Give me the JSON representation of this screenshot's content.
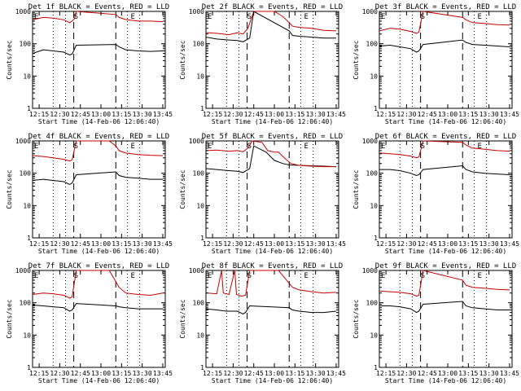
{
  "chart_data": [
    {
      "type": "line",
      "title": "Det 1f BLACK = Events, RED = LLD",
      "ylabel": "Counts/sec",
      "xlabel": "Start Time (14-Feb-06 12:06:40)",
      "yscale": "log",
      "ylim": [
        1,
        1000
      ],
      "x_ticks": [
        "12:15",
        "12:30",
        "12:45",
        "13:00",
        "13:15",
        "13:30",
        "13:45"
      ],
      "y_ticks": [
        "1",
        "10",
        "100",
        "1000"
      ],
      "markers": [
        "E",
        "S",
        "E"
      ],
      "series": [
        {
          "name": "BLACK",
          "color": "#000000",
          "x": [
            12.17,
            12.3,
            12.42,
            12.55,
            12.62,
            12.65,
            12.7,
            13.18,
            13.22,
            13.3,
            13.45,
            13.6,
            13.75
          ],
          "y": [
            50,
            65,
            60,
            55,
            45,
            48,
            90,
            95,
            80,
            65,
            60,
            58,
            60
          ]
        },
        {
          "name": "RED",
          "color": "#cc0000",
          "x": [
            12.17,
            12.3,
            12.42,
            12.55,
            12.62,
            12.65,
            12.68,
            12.7,
            13.18,
            13.22,
            13.3,
            13.45,
            13.6,
            13.75
          ],
          "y": [
            550,
            650,
            620,
            550,
            450,
            500,
            600,
            1000,
            800,
            650,
            560,
            500,
            500,
            480
          ]
        }
      ]
    },
    {
      "type": "line",
      "title": "Det 2f BLACK = Events, RED = LLD",
      "ylabel": "Counts/sec",
      "xlabel": "Start Time (14-Feb-06 12:06:40)",
      "yscale": "log",
      "ylim": [
        1,
        1000
      ],
      "x_ticks": [
        "12:15",
        "12:30",
        "12:45",
        "13:00",
        "13:15",
        "13:30",
        "13:45"
      ],
      "y_ticks": [
        "1",
        "10",
        "100",
        "1000"
      ],
      "markers": [
        "E",
        "S",
        "E"
      ],
      "series": [
        {
          "name": "BLACK",
          "color": "#000000",
          "x": [
            12.17,
            12.3,
            12.45,
            12.55,
            12.62,
            12.7,
            12.75,
            13.18,
            13.22,
            13.3,
            13.45,
            13.6,
            13.75
          ],
          "y": [
            160,
            140,
            130,
            125,
            115,
            150,
            1000,
            250,
            180,
            170,
            160,
            150,
            150
          ]
        },
        {
          "name": "RED",
          "color": "#cc0000",
          "x": [
            12.17,
            12.3,
            12.45,
            12.55,
            12.62,
            12.68,
            12.75,
            13.0,
            13.1,
            13.18,
            13.22,
            13.3,
            13.45,
            13.6,
            13.75
          ],
          "y": [
            220,
            210,
            190,
            220,
            200,
            300,
            1000,
            1000,
            700,
            450,
            350,
            320,
            300,
            260,
            250
          ]
        }
      ]
    },
    {
      "type": "line",
      "title": "Det 3f BLACK = Events, RED = LLD",
      "ylabel": "Counts/sec",
      "xlabel": "Start Time (14-Feb-06 12:06:40)",
      "yscale": "log",
      "ylim": [
        1,
        1000
      ],
      "x_ticks": [
        "12:15",
        "12:30",
        "12:45",
        "13:00",
        "13:15",
        "13:30",
        "13:45"
      ],
      "y_ticks": [
        "1",
        "10",
        "100",
        "1000"
      ],
      "markers": [
        "E",
        "S",
        "E"
      ],
      "series": [
        {
          "name": "BLACK",
          "color": "#000000",
          "x": [
            12.17,
            12.3,
            12.42,
            12.55,
            12.62,
            12.65,
            12.7,
            13.18,
            13.22,
            13.3,
            13.45,
            13.6,
            13.75
          ],
          "y": [
            85,
            90,
            80,
            70,
            55,
            60,
            95,
            130,
            110,
            95,
            90,
            85,
            80
          ]
        },
        {
          "name": "RED",
          "color": "#cc0000",
          "x": [
            12.17,
            12.3,
            12.42,
            12.55,
            12.62,
            12.65,
            12.7,
            13.18,
            13.22,
            13.3,
            13.45,
            13.6,
            13.75
          ],
          "y": [
            250,
            300,
            280,
            240,
            210,
            230,
            1000,
            650,
            550,
            450,
            420,
            390,
            380
          ]
        }
      ]
    },
    {
      "type": "line",
      "title": "Det 4f BLACK = Events, RED = LLD",
      "ylabel": "Counts/sec",
      "xlabel": "Start Time (14-Feb-06 12:06:40)",
      "yscale": "log",
      "ylim": [
        1,
        1000
      ],
      "x_ticks": [
        "12:15",
        "12:30",
        "12:45",
        "13:00",
        "13:15",
        "13:30",
        "13:45"
      ],
      "y_ticks": [
        "1",
        "10",
        "100",
        "1000"
      ],
      "markers": [
        "E",
        "S",
        "E"
      ],
      "series": [
        {
          "name": "BLACK",
          "color": "#000000",
          "x": [
            12.17,
            12.3,
            12.42,
            12.55,
            12.62,
            12.65,
            12.7,
            13.18,
            13.22,
            13.3,
            13.45,
            13.6,
            13.75
          ],
          "y": [
            60,
            65,
            60,
            55,
            45,
            50,
            90,
            110,
            85,
            75,
            70,
            65,
            65
          ]
        },
        {
          "name": "RED",
          "color": "#cc0000",
          "x": [
            12.17,
            12.3,
            12.42,
            12.55,
            12.62,
            12.65,
            12.7,
            13.1,
            13.18,
            13.22,
            13.3,
            13.45,
            13.6,
            13.75
          ],
          "y": [
            350,
            330,
            300,
            270,
            240,
            260,
            1000,
            1000,
            700,
            500,
            420,
            380,
            360,
            350
          ]
        }
      ]
    },
    {
      "type": "line",
      "title": "Det 5f BLACK = Events, RED = LLD",
      "ylabel": "Counts/sec",
      "xlabel": "Start Time (14-Feb-06 12:06:40)",
      "yscale": "log",
      "ylim": [
        1,
        1000
      ],
      "x_ticks": [
        "12:15",
        "12:30",
        "12:45",
        "13:00",
        "13:15",
        "13:30",
        "13:45"
      ],
      "y_ticks": [
        "1",
        "10",
        "100",
        "1000"
      ],
      "markers": [
        "E",
        "S",
        "E"
      ],
      "series": [
        {
          "name": "BLACK",
          "color": "#000000",
          "x": [
            12.17,
            12.3,
            12.45,
            12.55,
            12.62,
            12.7,
            12.75,
            12.9,
            13.0,
            13.1,
            13.18,
            13.3,
            13.45,
            13.6,
            13.75
          ],
          "y": [
            140,
            130,
            120,
            115,
            105,
            140,
            700,
            450,
            250,
            200,
            180,
            175,
            170,
            165,
            160
          ]
        },
        {
          "name": "RED",
          "color": "#cc0000",
          "x": [
            12.17,
            12.3,
            12.45,
            12.55,
            12.62,
            12.68,
            12.73,
            12.85,
            12.92,
            13.0,
            13.05,
            13.12,
            13.2,
            13.3,
            13.45,
            13.6,
            13.75
          ],
          "y": [
            500,
            520,
            480,
            500,
            460,
            600,
            1000,
            900,
            500,
            450,
            450,
            300,
            200,
            175,
            165,
            160,
            160
          ]
        }
      ]
    },
    {
      "type": "line",
      "title": "Det 6f BLACK = Events, RED = LLD",
      "ylabel": "Counts/sec",
      "xlabel": "Start Time (14-Feb-06 12:06:40)",
      "yscale": "log",
      "ylim": [
        1,
        1000
      ],
      "x_ticks": [
        "12:15",
        "12:30",
        "12:45",
        "13:00",
        "13:15",
        "13:30",
        "13:45"
      ],
      "y_ticks": [
        "1",
        "10",
        "100",
        "1000"
      ],
      "markers": [
        "E",
        "S",
        "E"
      ],
      "series": [
        {
          "name": "BLACK",
          "color": "#000000",
          "x": [
            12.17,
            12.3,
            12.42,
            12.55,
            12.62,
            12.65,
            12.7,
            13.18,
            13.22,
            13.3,
            13.45,
            13.6,
            13.75
          ],
          "y": [
            130,
            130,
            120,
            100,
            85,
            90,
            130,
            170,
            130,
            110,
            100,
            95,
            90
          ]
        },
        {
          "name": "RED",
          "color": "#cc0000",
          "x": [
            12.17,
            12.3,
            12.42,
            12.55,
            12.62,
            12.65,
            12.7,
            13.18,
            13.22,
            13.3,
            13.45,
            13.6,
            13.75
          ],
          "y": [
            420,
            400,
            380,
            340,
            300,
            320,
            1000,
            900,
            750,
            600,
            550,
            500,
            480
          ]
        }
      ]
    },
    {
      "type": "line",
      "title": "Det 7f BLACK = Events, RED = LLD",
      "ylabel": "Counts/sec",
      "xlabel": "Start Time (14-Feb-06 12:06:40)",
      "yscale": "log",
      "ylim": [
        1,
        1000
      ],
      "x_ticks": [
        "12:15",
        "12:30",
        "12:45",
        "13:00",
        "13:15",
        "13:30",
        "13:45"
      ],
      "y_ticks": [
        "1",
        "10",
        "100",
        "1000"
      ],
      "markers": [
        "E",
        "S",
        "E"
      ],
      "series": [
        {
          "name": "BLACK",
          "color": "#000000",
          "x": [
            12.17,
            12.3,
            12.42,
            12.55,
            12.62,
            12.65,
            12.7,
            13.18,
            13.22,
            13.3,
            13.45,
            13.6,
            13.75
          ],
          "y": [
            85,
            80,
            75,
            70,
            55,
            60,
            95,
            80,
            75,
            70,
            65,
            65,
            65
          ]
        },
        {
          "name": "RED",
          "color": "#cc0000",
          "x": [
            12.17,
            12.3,
            12.42,
            12.55,
            12.62,
            12.65,
            12.7,
            13.1,
            13.18,
            13.22,
            13.3,
            13.45,
            13.6,
            13.75
          ],
          "y": [
            180,
            200,
            190,
            170,
            140,
            150,
            1000,
            1000,
            450,
            300,
            200,
            180,
            170,
            200
          ]
        }
      ]
    },
    {
      "type": "line",
      "title": "Det 8f BLACK = Events, RED = LLD",
      "ylabel": "Counts/sec",
      "xlabel": "Start Time (14-Feb-06 12:06:40)",
      "yscale": "log",
      "ylim": [
        1,
        1000
      ],
      "x_ticks": [
        "12:15",
        "12:30",
        "12:45",
        "13:00",
        "13:15",
        "13:30",
        "13:45"
      ],
      "y_ticks": [
        "1",
        "10",
        "100",
        "1000"
      ],
      "markers": [
        "E",
        "S",
        "E"
      ],
      "series": [
        {
          "name": "BLACK",
          "color": "#000000",
          "x": [
            12.17,
            12.3,
            12.42,
            12.55,
            12.62,
            12.65,
            12.7,
            13.18,
            13.22,
            13.3,
            13.45,
            13.6,
            13.75
          ],
          "y": [
            65,
            60,
            55,
            55,
            45,
            50,
            80,
            70,
            60,
            55,
            50,
            50,
            55
          ]
        },
        {
          "name": "RED",
          "color": "#cc0000",
          "x": [
            12.17,
            12.3,
            12.36,
            12.38,
            12.45,
            12.52,
            12.54,
            12.6,
            12.65,
            12.7,
            13.05,
            13.18,
            13.22,
            13.3,
            13.45,
            13.6,
            13.75
          ],
          "y": [
            200,
            190,
            1000,
            200,
            180,
            1000,
            180,
            160,
            170,
            1000,
            1000,
            400,
            300,
            250,
            220,
            200,
            210
          ]
        }
      ]
    },
    {
      "type": "line",
      "title": "Det 9f BLACK = Events, RED = LLD",
      "ylabel": "Counts/sec",
      "xlabel": "Start Time (14-Feb-06 12:06:40)",
      "yscale": "log",
      "ylim": [
        1,
        1000
      ],
      "x_ticks": [
        "12:15",
        "12:30",
        "12:45",
        "13:00",
        "13:15",
        "13:30",
        "13:45"
      ],
      "y_ticks": [
        "1",
        "10",
        "100",
        "1000"
      ],
      "markers": [
        "E",
        "S",
        "E"
      ],
      "series": [
        {
          "name": "BLACK",
          "color": "#000000",
          "x": [
            12.17,
            12.3,
            12.42,
            12.55,
            12.62,
            12.65,
            12.7,
            13.18,
            13.22,
            13.3,
            13.45,
            13.6,
            13.75
          ],
          "y": [
            80,
            80,
            75,
            65,
            50,
            55,
            90,
            110,
            80,
            70,
            65,
            60,
            60
          ]
        },
        {
          "name": "RED",
          "color": "#cc0000",
          "x": [
            12.17,
            12.3,
            12.42,
            12.55,
            12.62,
            12.65,
            12.7,
            13.18,
            13.22,
            13.3,
            13.45,
            13.6,
            13.75
          ],
          "y": [
            230,
            220,
            210,
            190,
            160,
            170,
            1000,
            500,
            350,
            300,
            280,
            260,
            250
          ]
        }
      ]
    }
  ]
}
